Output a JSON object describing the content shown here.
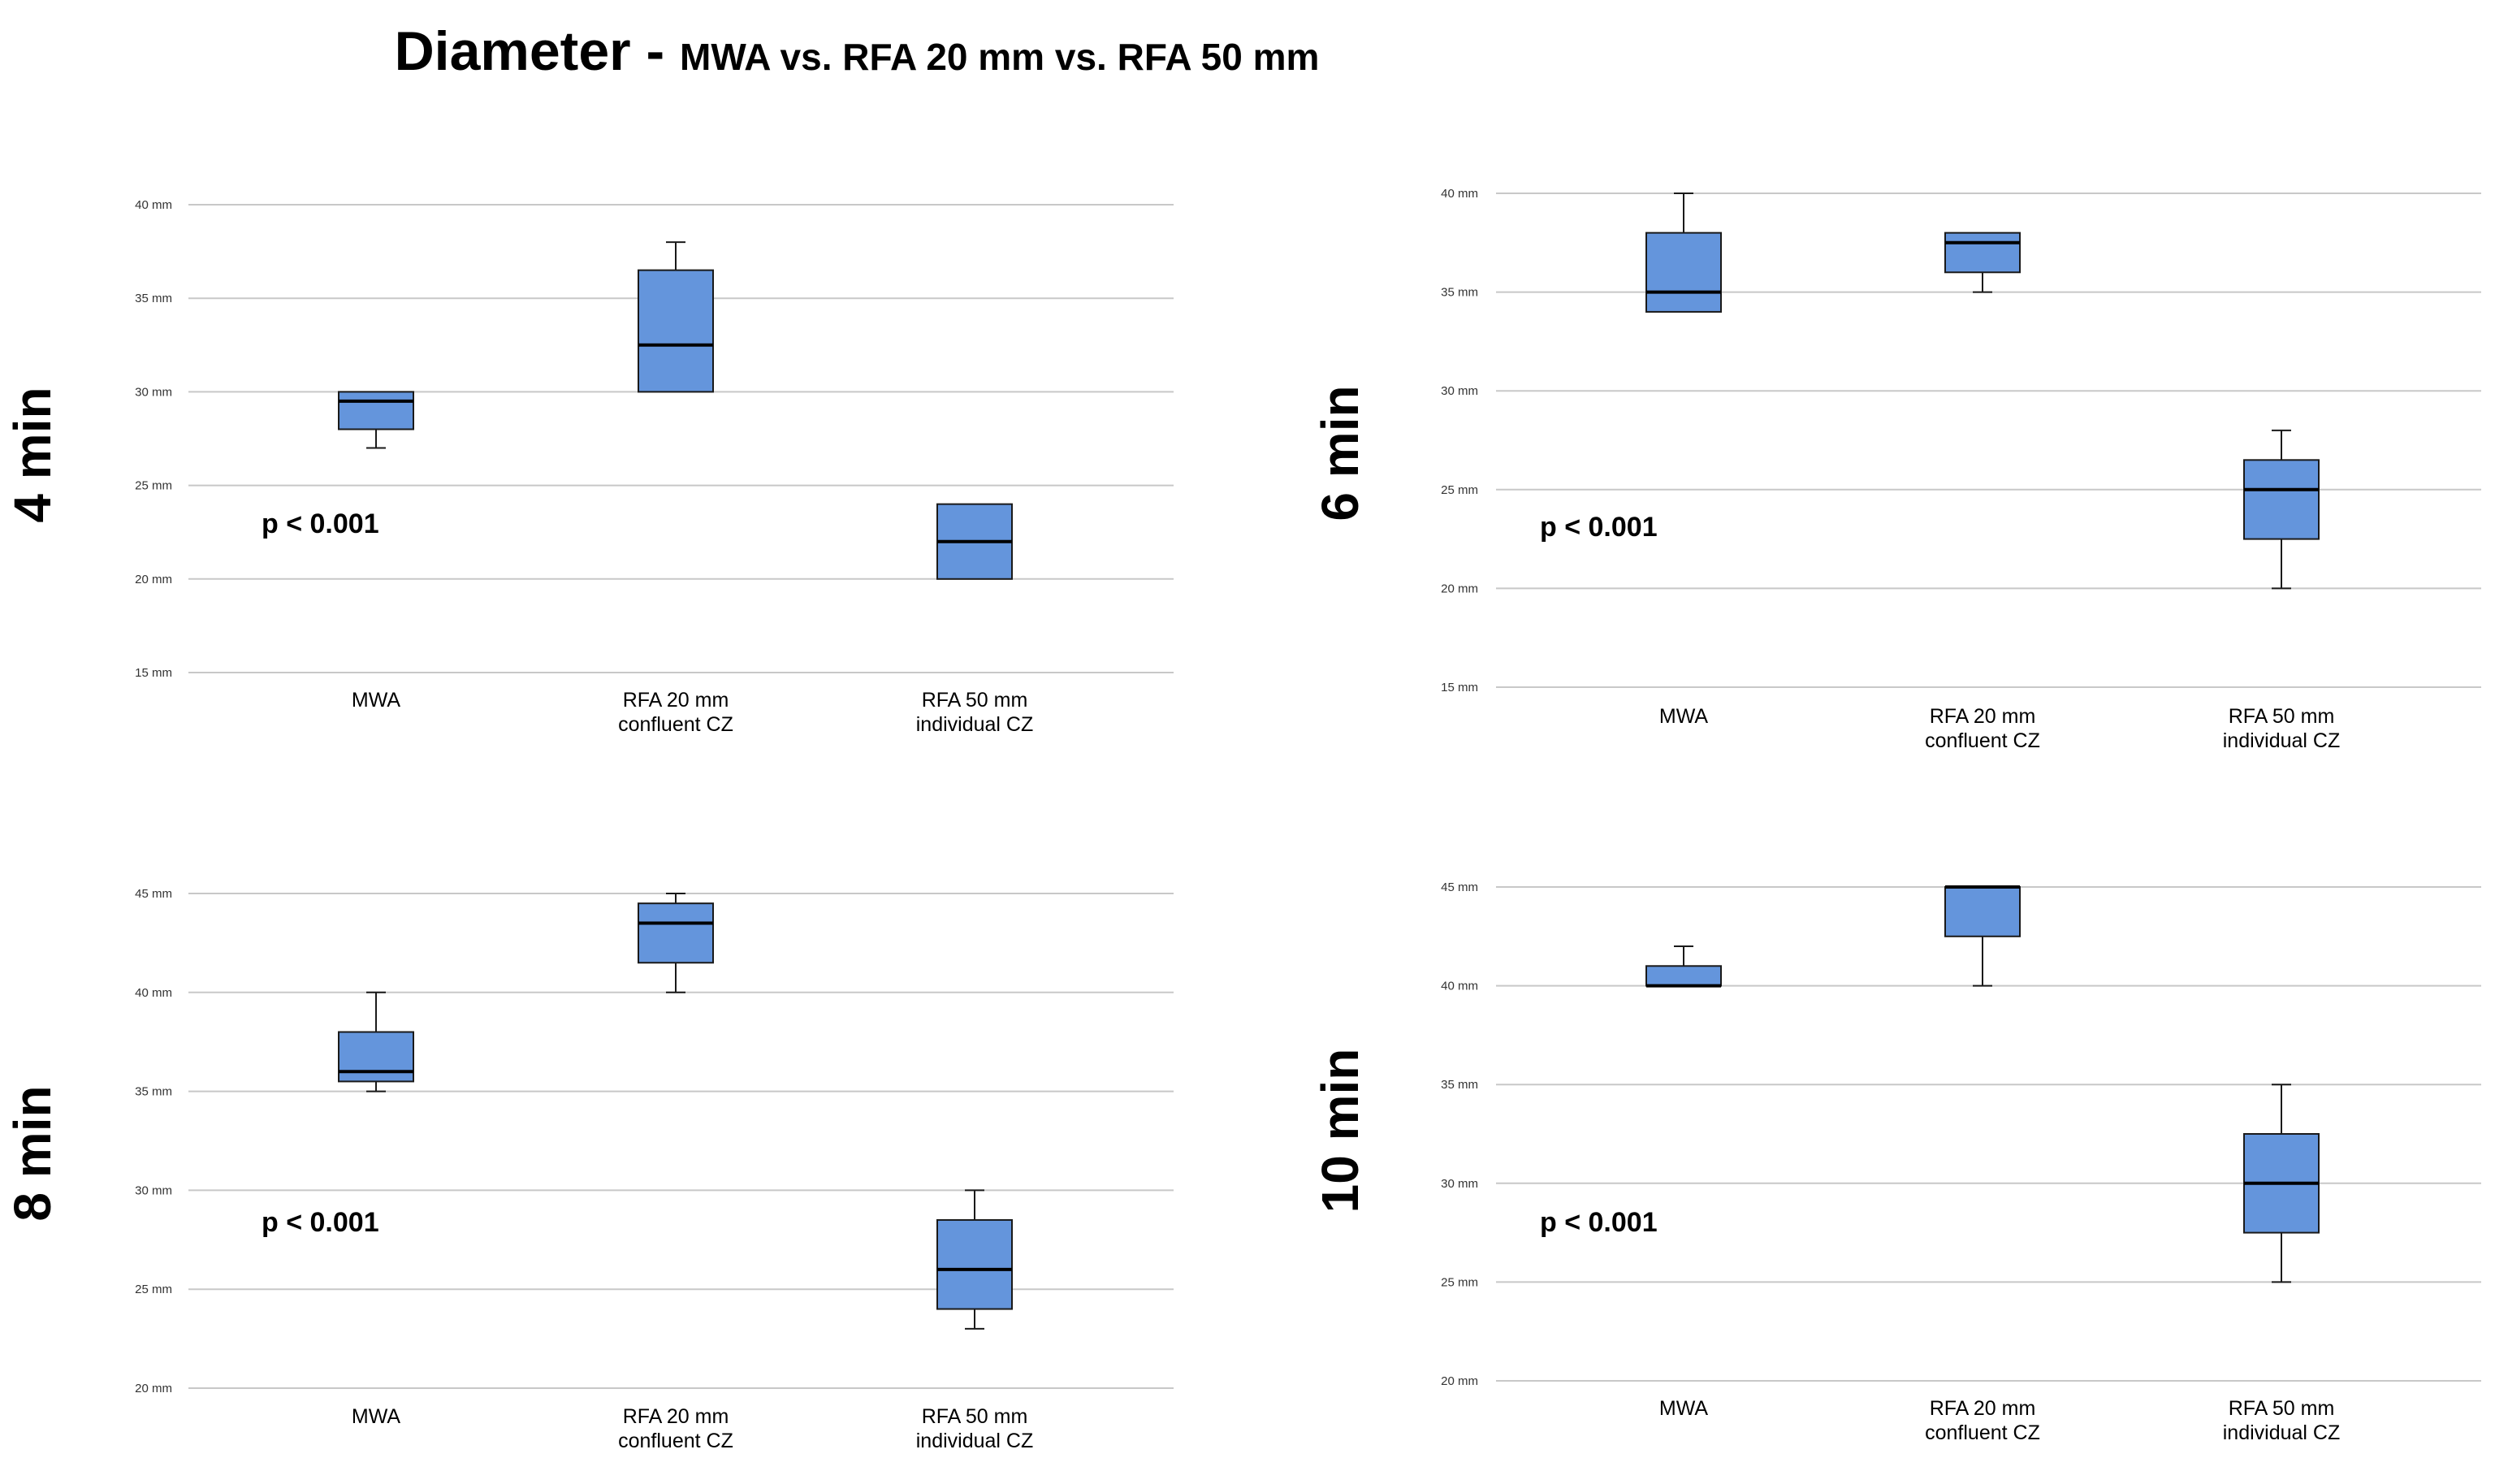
{
  "title": {
    "main": "Diameter - ",
    "sub": "MWA vs. RFA 20 mm vs. RFA 50 mm"
  },
  "colors": {
    "box_fill": "#6495dc",
    "box_stroke": "#1a1a1a",
    "grid": "#c8c8c8",
    "text": "#000000"
  },
  "chart_data": [
    {
      "type": "box",
      "panel_label": "4 min",
      "annotation": "p < 0.001",
      "y_unit": "mm",
      "ylim": [
        15,
        40
      ],
      "yticks": [
        15,
        20,
        25,
        30,
        35,
        40
      ],
      "ytick_labels": [
        "15 mm",
        "20 mm",
        "25 mm",
        "30 mm",
        "35 mm",
        "40 mm"
      ],
      "categories": [
        {
          "line1": "MWA",
          "line2": ""
        },
        {
          "line1": "RFA 20 mm",
          "line2": "confluent CZ"
        },
        {
          "line1": "RFA 50 mm",
          "line2": "individual CZ"
        }
      ],
      "boxes": [
        {
          "min": 27,
          "q1": 28,
          "median": 29.5,
          "q3": 30,
          "max": 30
        },
        {
          "min": 30,
          "q1": 30,
          "median": 32.5,
          "q3": 36.5,
          "max": 38
        },
        {
          "min": 20,
          "q1": 20,
          "median": 22,
          "q3": 24,
          "max": 24
        }
      ]
    },
    {
      "type": "box",
      "panel_label": "6 min",
      "annotation": "p < 0.001",
      "y_unit": "mm",
      "ylim": [
        15,
        40
      ],
      "yticks": [
        15,
        20,
        25,
        30,
        35,
        40
      ],
      "ytick_labels": [
        "15 mm",
        "20 mm",
        "25 mm",
        "30 mm",
        "35 mm",
        "40 mm"
      ],
      "categories": [
        {
          "line1": "MWA",
          "line2": ""
        },
        {
          "line1": "RFA 20 mm",
          "line2": "confluent CZ"
        },
        {
          "line1": "RFA 50 mm",
          "line2": "individual CZ"
        }
      ],
      "boxes": [
        {
          "min": 34,
          "q1": 34,
          "median": 35,
          "q3": 38,
          "max": 40
        },
        {
          "min": 35,
          "q1": 36,
          "median": 37.5,
          "q3": 38,
          "max": 38
        },
        {
          "min": 20,
          "q1": 22.5,
          "median": 25,
          "q3": 26.5,
          "max": 28
        }
      ]
    },
    {
      "type": "box",
      "panel_label": "8 min",
      "annotation": "p < 0.001",
      "y_unit": "mm",
      "ylim": [
        20,
        45
      ],
      "yticks": [
        20,
        25,
        30,
        35,
        40,
        45
      ],
      "ytick_labels": [
        "20 mm",
        "25 mm",
        "30 mm",
        "35 mm",
        "40 mm",
        "45 mm"
      ],
      "categories": [
        {
          "line1": "MWA",
          "line2": ""
        },
        {
          "line1": "RFA 20 mm",
          "line2": "confluent CZ"
        },
        {
          "line1": "RFA 50 mm",
          "line2": "individual CZ"
        }
      ],
      "boxes": [
        {
          "min": 35,
          "q1": 35.5,
          "median": 36,
          "q3": 38,
          "max": 40
        },
        {
          "min": 40,
          "q1": 41.5,
          "median": 43.5,
          "q3": 44.5,
          "max": 45
        },
        {
          "min": 23,
          "q1": 24,
          "median": 26,
          "q3": 28.5,
          "max": 30
        }
      ]
    },
    {
      "type": "box",
      "panel_label": "10 min",
      "annotation": "p < 0.001",
      "y_unit": "mm",
      "ylim": [
        20,
        45
      ],
      "yticks": [
        20,
        25,
        30,
        35,
        40,
        45
      ],
      "ytick_labels": [
        "20 mm",
        "25 mm",
        "30 mm",
        "35 mm",
        "40 mm",
        "45 mm"
      ],
      "categories": [
        {
          "line1": "MWA",
          "line2": ""
        },
        {
          "line1": "RFA 20 mm",
          "line2": "confluent CZ"
        },
        {
          "line1": "RFA 50 mm",
          "line2": "individual CZ"
        }
      ],
      "boxes": [
        {
          "min": 40,
          "q1": 40,
          "median": 40,
          "q3": 41,
          "max": 42
        },
        {
          "min": 40,
          "q1": 42.5,
          "median": 45,
          "q3": 45,
          "max": 45
        },
        {
          "min": 25,
          "q1": 27.5,
          "median": 30,
          "q3": 32.5,
          "max": 35
        }
      ]
    }
  ]
}
